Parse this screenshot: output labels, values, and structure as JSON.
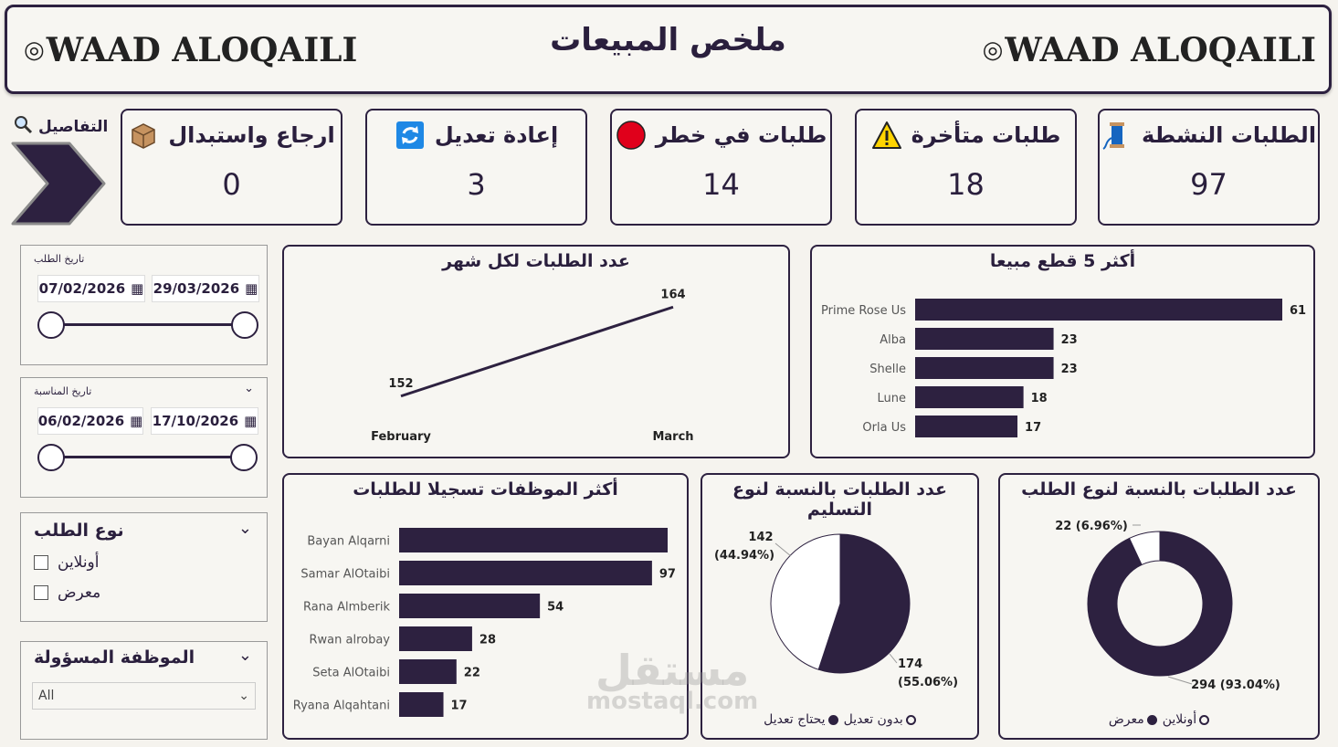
{
  "header": {
    "title": "ملخص المبيعات",
    "logo_text": "WAAD ALOQAILI"
  },
  "kpis": [
    {
      "title": "الطلبات النشطة",
      "value": "97",
      "icon": "thread-spool-icon"
    },
    {
      "title": "طلبات متأخرة",
      "value": "18",
      "icon": "warning-icon"
    },
    {
      "title": "طلبات في خطر",
      "value": "14",
      "icon": "red-circle-icon"
    },
    {
      "title": "إعادة تعديل",
      "value": "3",
      "icon": "refresh-icon"
    },
    {
      "title": "ارجاع واستبدال",
      "value": "0",
      "icon": "package-icon"
    }
  ],
  "details": {
    "label": "التفاصيل"
  },
  "filters": {
    "order_date": {
      "label": "تاريخ الطلب",
      "start": "07/02/2026",
      "end": "29/03/2026"
    },
    "event_date": {
      "label": "تاريخ المناسبة",
      "start": "06/02/2026",
      "end": "17/10/2026"
    },
    "order_type": {
      "label": "نوع الطلب",
      "options": [
        "أونلاين",
        "معرض"
      ]
    },
    "employee": {
      "label": "الموظفة المسؤولة",
      "value": "All"
    }
  },
  "colors": {
    "primary": "#2d2140",
    "background": "#f5f3ee",
    "danger": "#e0001b",
    "warning": "#ffd400"
  },
  "watermark": {
    "main": "مستقل",
    "sub": "mostaql.com"
  },
  "chart_data": [
    {
      "id": "orders-per-month",
      "type": "line",
      "title": "عدد الطلبات لكل شهر",
      "categories": [
        "February",
        "March"
      ],
      "values": [
        152,
        164
      ]
    },
    {
      "id": "top-5-items",
      "type": "bar",
      "title": "أكثر 5 قطع مبيعا",
      "categories": [
        "Prime Rose Us",
        "Alba",
        "Shelle",
        "Lune",
        "Orla Us"
      ],
      "values": [
        61,
        23,
        23,
        18,
        17
      ]
    },
    {
      "id": "top-employees",
      "type": "bar",
      "title": "أكثر الموظفات تسجيلا للطلبات",
      "categories": [
        "Bayan Alqarni",
        "Samar AlOtaibi",
        "Rana Almberik",
        "Rwan alrobay",
        "Seta AlOtaibi",
        "Ryana Alqahtani"
      ],
      "values": [
        null,
        97,
        54,
        28,
        22,
        17
      ]
    },
    {
      "id": "delivery-type",
      "type": "pie",
      "title": "عدد الطلبات بالنسبة لنوع التسليم",
      "slices": [
        {
          "name": "يحتاج تعديل",
          "value": 174,
          "label": "174",
          "pct": "(55.06%)"
        },
        {
          "name": "بدون تعديل",
          "value": 142,
          "label": "142",
          "pct": "(44.94%)"
        }
      ]
    },
    {
      "id": "order-type",
      "type": "pie",
      "title": "عدد الطلبات بالنسبة لنوع الطلب",
      "slices": [
        {
          "name": "معرض",
          "value": 294,
          "label": "294 (93.04%)"
        },
        {
          "name": "أونلاين",
          "value": 22,
          "label": "22 (6.96%)"
        }
      ]
    }
  ]
}
